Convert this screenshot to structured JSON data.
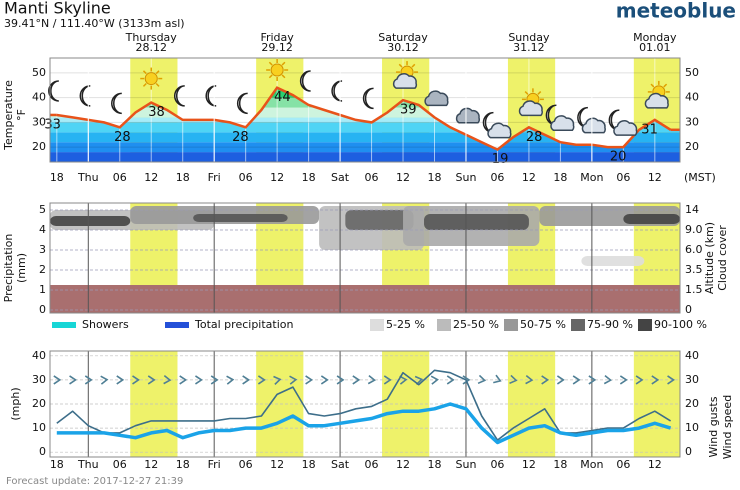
{
  "header": {
    "title": "Manti Skyline",
    "coordinates": "39.41°N / 111.40°W (3133m asl)",
    "brand": "meteoblue"
  },
  "footer": "Forecast update: 2017-12-27 21:39",
  "time_axis": {
    "x": [
      0,
      6,
      12,
      18,
      24,
      30,
      36,
      42,
      48,
      54,
      60,
      66,
      72,
      78,
      84,
      90,
      96,
      102,
      108,
      114
    ],
    "labels": [
      "18",
      "Thu",
      "06",
      "12",
      "18",
      "Fri",
      "06",
      "12",
      "18",
      "Sat",
      "06",
      "12",
      "18",
      "Sun",
      "06",
      "12",
      "18",
      "Mon",
      "06",
      "12"
    ],
    "xlim": [
      -1.3,
      118.8
    ],
    "zone": "(MST)",
    "daylight": [
      [
        14,
        23
      ],
      [
        38,
        47
      ],
      [
        62,
        71
      ],
      [
        86,
        95
      ],
      [
        110,
        118.8
      ]
    ],
    "daylight_color": "#eef26a"
  },
  "days": [
    {
      "name": "Thursday",
      "date": "28.12",
      "x": 18,
      "color": "#111111"
    },
    {
      "name": "Friday",
      "date": "29.12",
      "x": 42,
      "color": "#111111"
    },
    {
      "name": "Saturday",
      "date": "30.12",
      "x": 66,
      "color": "#d2481a"
    },
    {
      "name": "Sunday",
      "date": "31.12",
      "x": 90,
      "color": "#d2481a"
    },
    {
      "name": "Monday",
      "date": "01.01",
      "x": 114,
      "color": "#111111"
    }
  ],
  "chart_data": [
    {
      "type": "line",
      "ylabel": [
        "Temperature",
        "°F"
      ],
      "ylim": [
        14,
        56
      ],
      "yticks": [
        20,
        30,
        40,
        50
      ],
      "x": [
        0,
        3,
        6,
        9,
        12,
        15,
        18,
        21,
        24,
        27,
        30,
        33,
        36,
        39,
        42,
        45,
        48,
        51,
        54,
        57,
        60,
        63,
        66,
        69,
        72,
        75,
        78,
        81,
        84,
        87,
        90,
        93,
        96,
        99,
        102,
        105,
        108,
        111,
        114,
        117
      ],
      "values": [
        33,
        32,
        31,
        30,
        28,
        34,
        38,
        35,
        31,
        31,
        31,
        30,
        28,
        35,
        44,
        41,
        37,
        35,
        33,
        31,
        30,
        34,
        39,
        37,
        32,
        28,
        25,
        22,
        19,
        24,
        28,
        25,
        22,
        21,
        21,
        20,
        20,
        27,
        31,
        27
      ],
      "color": "#e8531a",
      "fill_bands": [
        {
          "from": 0,
          "to": 18,
          "color": "#1d5fe0"
        },
        {
          "from": 18,
          "to": 22,
          "color": "#1f8ff0"
        },
        {
          "from": 22,
          "to": 26,
          "color": "#27b3f2"
        },
        {
          "from": 26,
          "to": 30,
          "color": "#4fd4f5"
        },
        {
          "from": 30,
          "to": 32,
          "color": "#a6ecf8"
        },
        {
          "from": 32,
          "to": 36,
          "color": "#cdf4de"
        },
        {
          "from": 36,
          "to": 40,
          "color": "#86e2a6"
        },
        {
          "from": 40,
          "to": 60,
          "color": "#2ccf70"
        }
      ],
      "annotations": [
        {
          "x": -0.8,
          "value": 33,
          "kind": "max"
        },
        {
          "x": 12.5,
          "value": 28,
          "kind": "min"
        },
        {
          "x": 19,
          "value": 38,
          "kind": "max"
        },
        {
          "x": 35,
          "value": 28,
          "kind": "min"
        },
        {
          "x": 43,
          "value": 44,
          "kind": "max"
        },
        {
          "x": 67,
          "value": 39,
          "kind": "max"
        },
        {
          "x": 84.5,
          "value": 19,
          "kind": "min"
        },
        {
          "x": 91,
          "value": 28,
          "kind": "max"
        },
        {
          "x": 107,
          "value": 20,
          "kind": "min"
        },
        {
          "x": 113,
          "value": 31,
          "kind": "max"
        }
      ],
      "symbols": {
        "x": [
          0,
          6,
          12,
          18,
          24,
          30,
          36,
          42,
          48,
          54,
          60,
          66,
          72,
          78,
          84,
          90,
          96,
          102,
          108,
          114
        ],
        "kinds": [
          "moon",
          "moon",
          "moon",
          "sun",
          "moon",
          "moon",
          "moon",
          "sun",
          "moon",
          "moon",
          "moon",
          "sun-cloud",
          "cloud",
          "cloud",
          "moon-cloud",
          "sun-cloud",
          "moon-cloud",
          "moon-cloud",
          "moon-cloud",
          "sun-cloud"
        ]
      }
    },
    {
      "type": "cloud",
      "ylabel": [
        "Precipitation",
        "(mm)"
      ],
      "y2label": [
        "Altitude (km)",
        "Cloud cover"
      ],
      "ylim": [
        -0.15,
        5.35
      ],
      "yticks": [
        0,
        1,
        2,
        3,
        4,
        5
      ],
      "y2ticks": [
        0,
        1.5,
        3.5,
        {
          "value": 6,
          "label": "6.0"
        },
        {
          "value": 9,
          "label": "9.0"
        },
        14
      ],
      "ground": {
        "top": 1.25,
        "color": "#a96f6f"
      },
      "cloud_cover": [
        {
          "x": [
            -1.3,
            30
          ],
          "y": [
            4.0,
            5.0
          ],
          "color": "#bbbbbb"
        },
        {
          "x": [
            -1.3,
            14
          ],
          "y": [
            4.2,
            4.7
          ],
          "color": "#444444"
        },
        {
          "x": [
            14,
            50
          ],
          "y": [
            4.3,
            5.2
          ],
          "color": "#999999"
        },
        {
          "x": [
            26,
            44
          ],
          "y": [
            4.4,
            4.8
          ],
          "color": "#555555"
        },
        {
          "x": [
            50,
            70
          ],
          "y": [
            3.0,
            5.2
          ],
          "color": "#bbbbbb"
        },
        {
          "x": [
            55,
            68
          ],
          "y": [
            4.0,
            5.0
          ],
          "color": "#666666"
        },
        {
          "x": [
            66,
            92
          ],
          "y": [
            3.2,
            5.2
          ],
          "color": "#aaaaaa"
        },
        {
          "x": [
            70,
            90
          ],
          "y": [
            4.0,
            4.8
          ],
          "color": "#555555"
        },
        {
          "x": [
            92,
            118.8
          ],
          "y": [
            4.2,
            5.2
          ],
          "color": "#999999"
        },
        {
          "x": [
            108,
            118.8
          ],
          "y": [
            4.3,
            4.8
          ],
          "color": "#444444"
        },
        {
          "x": [
            100,
            112
          ],
          "y": [
            2.2,
            2.7
          ],
          "color": "#dddddd"
        }
      ],
      "legend": [
        {
          "name": "Showers",
          "color": "#17d6d6"
        },
        {
          "name": "Total precipitation",
          "color": "#2450d8"
        }
      ],
      "cover_legend": [
        {
          "name": "5-25 %",
          "color": "#dddddd"
        },
        {
          "name": "25-50 %",
          "color": "#bbbbbb"
        },
        {
          "name": "50-75 %",
          "color": "#999999"
        },
        {
          "name": "75-90 %",
          "color": "#666666"
        },
        {
          "name": "90-100 %",
          "color": "#444444"
        }
      ]
    },
    {
      "type": "wind",
      "ylabel": [
        "(mph)"
      ],
      "ylim": [
        -2,
        42
      ],
      "yticks": [
        0,
        10,
        20,
        30,
        40
      ],
      "x": [
        0,
        3,
        6,
        9,
        12,
        15,
        18,
        21,
        24,
        27,
        30,
        33,
        36,
        39,
        42,
        45,
        48,
        51,
        54,
        57,
        60,
        63,
        66,
        69,
        72,
        75,
        78,
        81,
        84,
        87,
        90,
        93,
        96,
        99,
        102,
        105,
        108,
        111,
        114,
        117
      ],
      "series": [
        {
          "name": "Wind gusts",
          "color": "#3d6e8a",
          "values": [
            12,
            17,
            11,
            8,
            8,
            11,
            13,
            13,
            13,
            13,
            13,
            14,
            14,
            15,
            24,
            27,
            16,
            15,
            16,
            18,
            19,
            22,
            33,
            28,
            34,
            33,
            30,
            15,
            5,
            10,
            14,
            18,
            8,
            8,
            9,
            10,
            10,
            14,
            17,
            13
          ]
        },
        {
          "name": "Wind speed",
          "color": "#1aa3e8",
          "values": [
            8,
            8,
            8,
            8,
            7,
            6,
            8,
            9,
            6,
            8,
            9,
            9,
            10,
            10,
            12,
            15,
            11,
            11,
            12,
            13,
            14,
            16,
            17,
            17,
            18,
            20,
            18,
            10,
            4,
            7,
            10,
            11,
            8,
            7,
            8,
            9,
            9,
            10,
            12,
            10
          ]
        }
      ],
      "direction_level": 30,
      "direction_color": "#4f7f95",
      "direction": [
        270,
        270,
        270,
        265,
        270,
        270,
        270,
        275,
        270,
        270,
        270,
        265,
        270,
        270,
        260,
        265,
        270,
        270,
        270,
        270,
        275,
        270,
        265,
        260,
        265,
        270,
        270,
        280,
        290,
        280,
        275,
        270,
        270,
        270,
        270,
        275,
        270,
        270,
        270,
        270
      ]
    }
  ]
}
